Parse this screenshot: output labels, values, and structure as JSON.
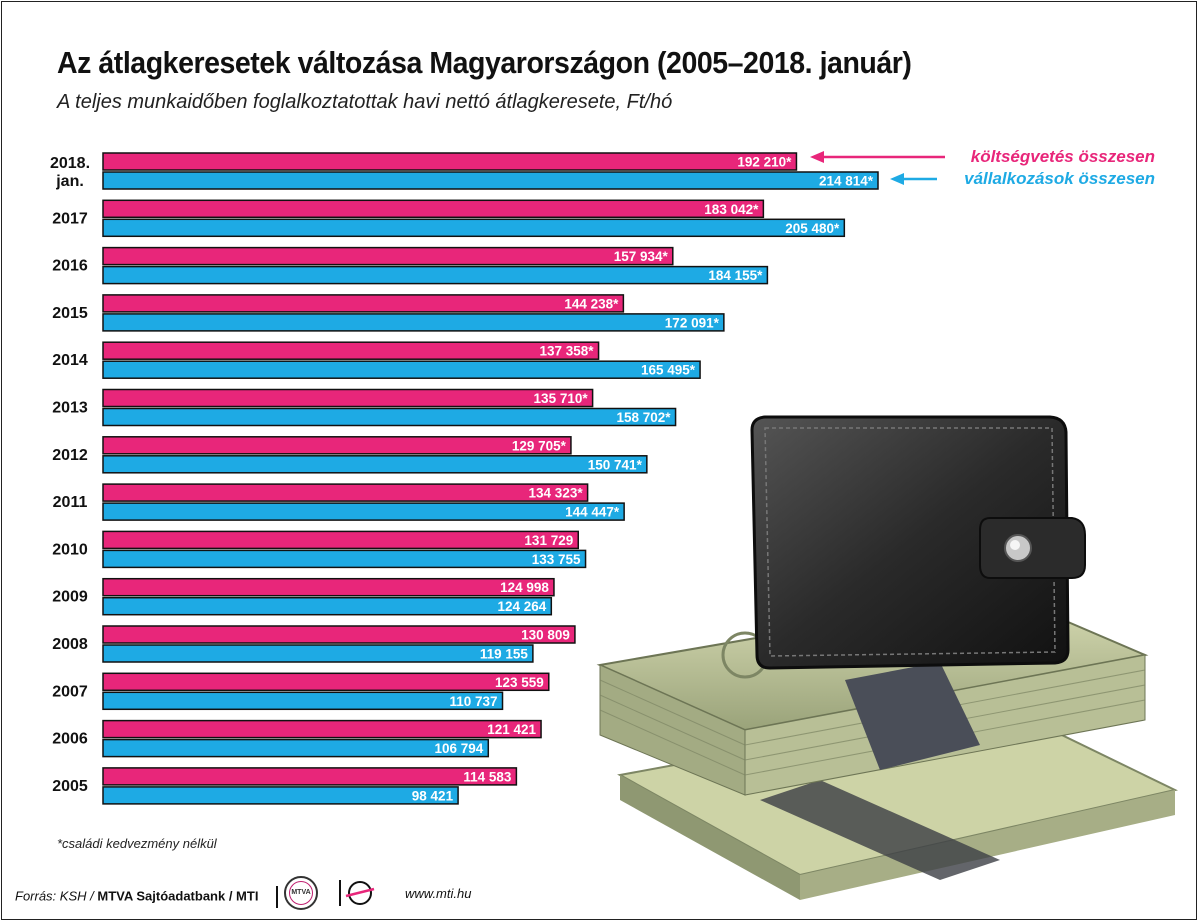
{
  "title": "Az átlagkeresetek változása Magyarországon (2005–2018. január)",
  "subtitle": "A teljes munkaidőben foglalkoztatottak havi nettó átlagkeresete, Ft/hó",
  "colors": {
    "koltsegvetes": "#e8267a",
    "vallalkozasok": "#1eaae4",
    "text_white": "#ffffff"
  },
  "chart_data": {
    "type": "bar",
    "orientation": "horizontal",
    "categories": [
      "2018.\njan.",
      "2017",
      "2016",
      "2015",
      "2014",
      "2013",
      "2012",
      "2011",
      "2010",
      "2009",
      "2008",
      "2007",
      "2006",
      "2005"
    ],
    "series": [
      {
        "name": "költségvetés összesen",
        "color": "#e8267a",
        "values": [
          192210,
          183042,
          157934,
          144238,
          137358,
          135710,
          129705,
          134323,
          131729,
          124998,
          130809,
          123559,
          121421,
          114583
        ],
        "labels": [
          "192 210*",
          "183 042*",
          "157 934*",
          "144 238*",
          "137 358*",
          "135 710*",
          "129 705*",
          "134 323*",
          "131 729",
          "124 998",
          "130 809",
          "123 559",
          "121 421",
          "114 583"
        ]
      },
      {
        "name": "vállalkozások összesen",
        "color": "#1eaae4",
        "values": [
          214814,
          205480,
          184155,
          172091,
          165495,
          158702,
          150741,
          144447,
          133755,
          124264,
          119155,
          110737,
          106794,
          98421
        ],
        "labels": [
          "214 814*",
          "205 480*",
          "184 155*",
          "172 091*",
          "165 495*",
          "158 702*",
          "150 741*",
          "144 447*",
          "133 755",
          "124 264",
          "119 155",
          "110 737",
          "106 794",
          "98 421"
        ]
      }
    ],
    "xlim": [
      0,
      250000
    ],
    "legend": "top-right"
  },
  "footnote": "*családi kedvezmény nélkül",
  "footer": {
    "source_prefix": "Forrás: KSH /",
    "source_bold": "MTVA Sajtóadatbank / MTI",
    "logo1": "MTVA",
    "url": "www.mti.hu"
  }
}
